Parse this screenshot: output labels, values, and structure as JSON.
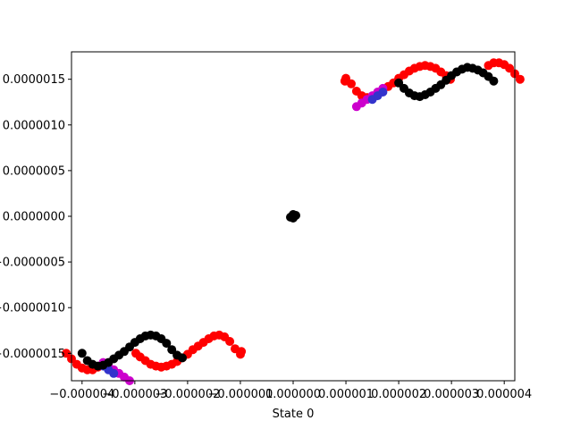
{
  "chart_data": {
    "type": "scatter",
    "xlabel": "State 0",
    "ylabel": "",
    "xlim": [
      -4.2e-06,
      4.2e-06
    ],
    "ylim": [
      -1.8e-06,
      1.8e-06
    ],
    "x_ticks": [
      {
        "value": -4e-06,
        "label": "−0.000004"
      },
      {
        "value": -3e-06,
        "label": "−0.000003"
      },
      {
        "value": -2e-06,
        "label": "−0.000002"
      },
      {
        "value": -1e-06,
        "label": "−0.000001"
      },
      {
        "value": 0.0,
        "label": "0.000000"
      },
      {
        "value": 1e-06,
        "label": "0.000001"
      },
      {
        "value": 2e-06,
        "label": "0.000002"
      },
      {
        "value": 3e-06,
        "label": "0.000003"
      },
      {
        "value": 4e-06,
        "label": "0.000004"
      }
    ],
    "y_ticks": [
      {
        "value": 1.5e-06,
        "label": "0.0000015"
      },
      {
        "value": 1e-06,
        "label": "0.0000010"
      },
      {
        "value": 5e-07,
        "label": "0.0000005"
      },
      {
        "value": 0.0,
        "label": "0.0000000"
      },
      {
        "value": -5e-07,
        "label": "−0.0000005"
      },
      {
        "value": -1e-06,
        "label": "−0.0000010"
      },
      {
        "value": -1.5e-06,
        "label": "−0.0000015"
      }
    ],
    "grid": false,
    "legend": "none",
    "series": [
      {
        "color": "#ff0000",
        "points": [
          [
            9.8e-07,
            1.48e-06
          ],
          [
            1e-06,
            1.51e-06
          ],
          [
            1.1e-06,
            1.45e-06
          ],
          [
            1.2e-06,
            1.37e-06
          ],
          [
            1.3e-06,
            1.32e-06
          ],
          [
            1.4e-06,
            1.3e-06
          ],
          [
            1.5e-06,
            1.31e-06
          ],
          [
            1.6e-06,
            1.34e-06
          ],
          [
            1.7e-06,
            1.38e-06
          ],
          [
            1.8e-06,
            1.42e-06
          ],
          [
            1.9e-06,
            1.46e-06
          ],
          [
            2e-06,
            1.51e-06
          ],
          [
            2.1e-06,
            1.55e-06
          ],
          [
            2.2e-06,
            1.59e-06
          ],
          [
            2.3e-06,
            1.62e-06
          ],
          [
            2.4e-06,
            1.64e-06
          ],
          [
            2.5e-06,
            1.65e-06
          ],
          [
            2.6e-06,
            1.64e-06
          ],
          [
            2.7e-06,
            1.62e-06
          ],
          [
            2.8e-06,
            1.58e-06
          ],
          [
            2.9e-06,
            1.54e-06
          ],
          [
            2.98e-06,
            1.5e-06
          ],
          [
            -9.8e-07,
            -1.48e-06
          ],
          [
            -1e-06,
            -1.51e-06
          ],
          [
            -1.1e-06,
            -1.45e-06
          ],
          [
            -1.2e-06,
            -1.37e-06
          ],
          [
            -1.3e-06,
            -1.32e-06
          ],
          [
            -1.4e-06,
            -1.3e-06
          ],
          [
            -1.5e-06,
            -1.31e-06
          ],
          [
            -1.6e-06,
            -1.34e-06
          ],
          [
            -1.7e-06,
            -1.38e-06
          ],
          [
            -1.8e-06,
            -1.42e-06
          ],
          [
            -1.9e-06,
            -1.46e-06
          ],
          [
            -2e-06,
            -1.51e-06
          ],
          [
            -2.1e-06,
            -1.55e-06
          ],
          [
            -2.2e-06,
            -1.59e-06
          ],
          [
            -2.3e-06,
            -1.62e-06
          ],
          [
            -2.4e-06,
            -1.64e-06
          ],
          [
            -2.5e-06,
            -1.65e-06
          ],
          [
            -2.6e-06,
            -1.64e-06
          ],
          [
            -2.7e-06,
            -1.62e-06
          ],
          [
            -2.8e-06,
            -1.58e-06
          ],
          [
            -2.9e-06,
            -1.54e-06
          ],
          [
            -2.98e-06,
            -1.5e-06
          ],
          [
            -4.3e-06,
            -1.5e-06
          ],
          [
            -4.2e-06,
            -1.56e-06
          ],
          [
            -4.1e-06,
            -1.62e-06
          ],
          [
            -4e-06,
            -1.66e-06
          ],
          [
            -3.9e-06,
            -1.68e-06
          ],
          [
            -3.8e-06,
            -1.68e-06
          ],
          [
            -3.7e-06,
            -1.65e-06
          ],
          [
            4.3e-06,
            1.5e-06
          ],
          [
            4.2e-06,
            1.56e-06
          ],
          [
            4.1e-06,
            1.62e-06
          ],
          [
            4e-06,
            1.66e-06
          ],
          [
            3.9e-06,
            1.68e-06
          ],
          [
            3.8e-06,
            1.68e-06
          ],
          [
            3.7e-06,
            1.65e-06
          ]
        ]
      },
      {
        "color": "#cc00cc",
        "points": [
          [
            1.2e-06,
            1.2e-06
          ],
          [
            1.3e-06,
            1.24e-06
          ],
          [
            1.4e-06,
            1.28e-06
          ],
          [
            1.5e-06,
            1.32e-06
          ],
          [
            1.6e-06,
            1.36e-06
          ],
          [
            1.7e-06,
            1.4e-06
          ],
          [
            -3.1e-06,
            -1.8e-06
          ],
          [
            -3.2e-06,
            -1.76e-06
          ],
          [
            -3.3e-06,
            -1.72e-06
          ],
          [
            -3.4e-06,
            -1.68e-06
          ],
          [
            -3.5e-06,
            -1.64e-06
          ],
          [
            -3.6e-06,
            -1.6e-06
          ]
        ]
      },
      {
        "color": "#3333cc",
        "points": [
          [
            1.5e-06,
            1.28e-06
          ],
          [
            1.6e-06,
            1.32e-06
          ],
          [
            1.7e-06,
            1.36e-06
          ],
          [
            -3.4e-06,
            -1.72e-06
          ],
          [
            -3.5e-06,
            -1.68e-06
          ],
          [
            -3.6e-06,
            -1.64e-06
          ]
        ]
      },
      {
        "color": "#000000",
        "points": [
          [
            -4e-06,
            -1.5e-06
          ],
          [
            -3.9e-06,
            -1.58e-06
          ],
          [
            -3.8e-06,
            -1.62e-06
          ],
          [
            -3.7e-06,
            -1.64e-06
          ],
          [
            -3.6e-06,
            -1.63e-06
          ],
          [
            -3.5e-06,
            -1.6e-06
          ],
          [
            -3.4e-06,
            -1.56e-06
          ],
          [
            -3.3e-06,
            -1.52e-06
          ],
          [
            -3.2e-06,
            -1.48e-06
          ],
          [
            -3.1e-06,
            -1.43e-06
          ],
          [
            -3e-06,
            -1.38e-06
          ],
          [
            -2.9e-06,
            -1.34e-06
          ],
          [
            -2.8e-06,
            -1.31e-06
          ],
          [
            -2.7e-06,
            -1.3e-06
          ],
          [
            -2.6e-06,
            -1.31e-06
          ],
          [
            -2.5e-06,
            -1.34e-06
          ],
          [
            -2.4e-06,
            -1.39e-06
          ],
          [
            -2.3e-06,
            -1.46e-06
          ],
          [
            -2.2e-06,
            -1.52e-06
          ],
          [
            -2.1e-06,
            -1.55e-06
          ],
          [
            2e-06,
            1.46e-06
          ],
          [
            2.1e-06,
            1.4e-06
          ],
          [
            2.2e-06,
            1.35e-06
          ],
          [
            2.3e-06,
            1.32e-06
          ],
          [
            2.4e-06,
            1.31e-06
          ],
          [
            2.5e-06,
            1.33e-06
          ],
          [
            2.6e-06,
            1.36e-06
          ],
          [
            2.7e-06,
            1.4e-06
          ],
          [
            2.8e-06,
            1.44e-06
          ],
          [
            2.9e-06,
            1.49e-06
          ],
          [
            3e-06,
            1.54e-06
          ],
          [
            3.1e-06,
            1.58e-06
          ],
          [
            3.2e-06,
            1.61e-06
          ],
          [
            3.3e-06,
            1.63e-06
          ],
          [
            3.4e-06,
            1.62e-06
          ],
          [
            3.5e-06,
            1.6e-06
          ],
          [
            3.6e-06,
            1.57e-06
          ],
          [
            3.7e-06,
            1.53e-06
          ],
          [
            3.8e-06,
            1.48e-06
          ],
          [
            0.0,
            0.0
          ],
          [
            5e-08,
            1e-08
          ],
          [
            -5e-08,
            -1e-08
          ],
          [
            0.0,
            2e-08
          ],
          [
            0.0,
            -2e-08
          ]
        ]
      }
    ]
  }
}
